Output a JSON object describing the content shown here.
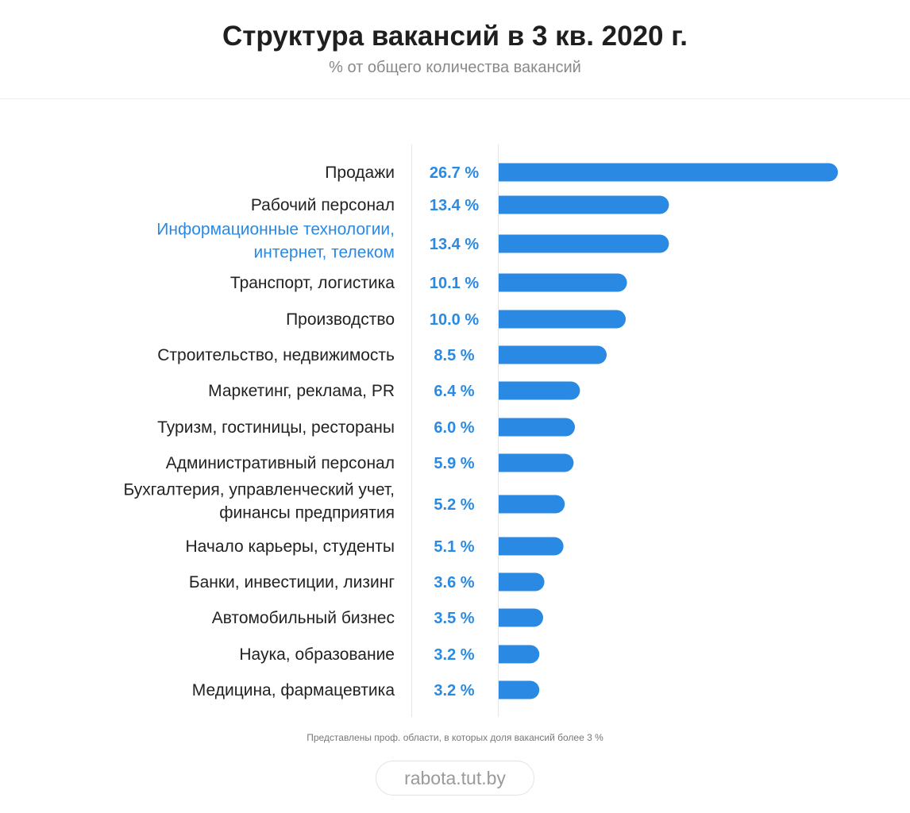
{
  "header": {
    "title": "Структура вакансий в 3 кв. 2020 г.",
    "subtitle": "% от общего количества вакансий"
  },
  "footer": {
    "note": "Представлены проф. области, в которых доля вакансий более 3 %",
    "brand": "rabota.tut.by"
  },
  "colors": {
    "bar": "#2a8ae3",
    "value_text": "#2a8ae3",
    "highlight_label": "#2a8ae3",
    "label_text": "#222222"
  },
  "chart_data": {
    "type": "bar",
    "orientation": "horizontal",
    "title": "Структура вакансий в 3 кв. 2020 г.",
    "subtitle": "% от общего количества вакансий",
    "grid": false,
    "highlighted_category": "Информационные технологии, интернет, телеком",
    "categories": [
      "Продажи",
      "Рабочий персонал",
      "Информационные технологии, интернет, телеком",
      "Транспорт, логистика",
      "Производство",
      "Строительство, недвижимость",
      "Маркетинг, реклама, PR",
      "Туризм, гостиницы, рестораны",
      "Административный персонал",
      "Бухгалтерия, управленческий учет, финансы предприятия",
      "Начало карьеры, студенты",
      "Банки, инвестиции, лизинг",
      "Автомобильный бизнес",
      "Наука, образование",
      "Медицина, фармацевтика"
    ],
    "label_lines": [
      [
        "Продажи"
      ],
      [
        "Рабочий персонал"
      ],
      [
        "Информационные технологии,",
        "интернет, телеком"
      ],
      [
        "Транспорт, логистика"
      ],
      [
        "Производство"
      ],
      [
        "Строительство, недвижимость"
      ],
      [
        "Маркетинг, реклама, PR"
      ],
      [
        "Туризм, гостиницы, рестораны"
      ],
      [
        "Административный персонал"
      ],
      [
        "Бухгалтерия, управленческий учет,",
        "финансы предприятия"
      ],
      [
        "Начало карьеры, студенты"
      ],
      [
        "Банки, инвестиции, лизинг"
      ],
      [
        "Автомобильный бизнес"
      ],
      [
        "Наука, образование"
      ],
      [
        "Медицина, фармацевтика"
      ]
    ],
    "values": [
      26.7,
      13.4,
      13.4,
      10.1,
      10.0,
      8.5,
      6.4,
      6.0,
      5.9,
      5.2,
      5.1,
      3.6,
      3.5,
      3.2,
      3.2
    ],
    "value_labels": [
      "26.7 %",
      "13.4 %",
      "13.4 %",
      "10.1 %",
      "10.0 %",
      "8.5 %",
      "6.4 %",
      "6.0 %",
      "5.9 %",
      "5.2 %",
      "5.1 %",
      "3.6 %",
      "3.5 %",
      "3.2 %",
      "3.2 %"
    ]
  }
}
